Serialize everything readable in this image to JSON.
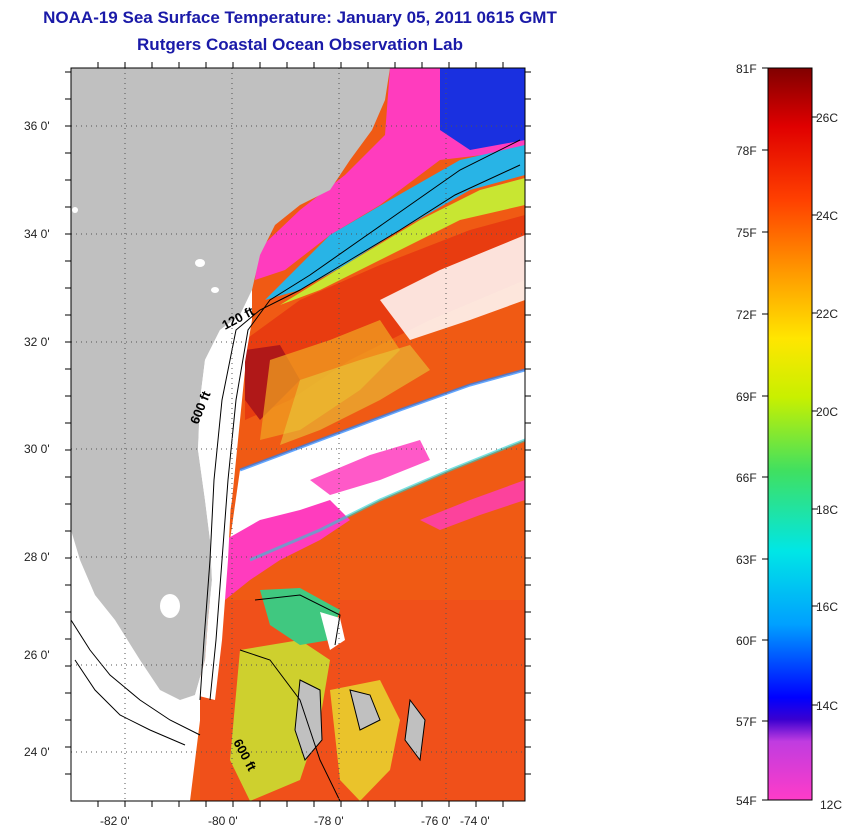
{
  "header": {
    "title": "NOAA-19 Sea Surface Temperature:  January 05, 2011 0615 GMT",
    "subtitle": "Rutgers Coastal Ocean Observation Lab"
  },
  "map": {
    "lat_labels": [
      "36 0'",
      "34 0'",
      "32 0'",
      "30 0'",
      "28 0'",
      "26 0'",
      "24 0'"
    ],
    "lon_labels": [
      "-82 0'",
      "-80 0'",
      "-78 0'",
      "-76 0'",
      "-74 0'"
    ],
    "isobath_labels": [
      "120 ft",
      "600 ft",
      "600 ft"
    ],
    "colors": {
      "land": "#c0c0c0",
      "no_data": "#ffffff",
      "gulf_stream": "#e84a10"
    }
  },
  "colorbar": {
    "fahrenheit": [
      "81F",
      "78F",
      "75F",
      "72F",
      "69F",
      "66F",
      "63F",
      "60F",
      "57F",
      "54F"
    ],
    "celsius": [
      "26C",
      "24C",
      "22C",
      "20C",
      "18C",
      "16C",
      "14C",
      "12C"
    ],
    "colors": [
      "#ff3cc8",
      "#8a2be2",
      "#0000ff",
      "#00a0ff",
      "#00e6e6",
      "#40e060",
      "#c8f000",
      "#ffe600",
      "#ff9a00",
      "#ff4000",
      "#e00000",
      "#800000"
    ]
  }
}
